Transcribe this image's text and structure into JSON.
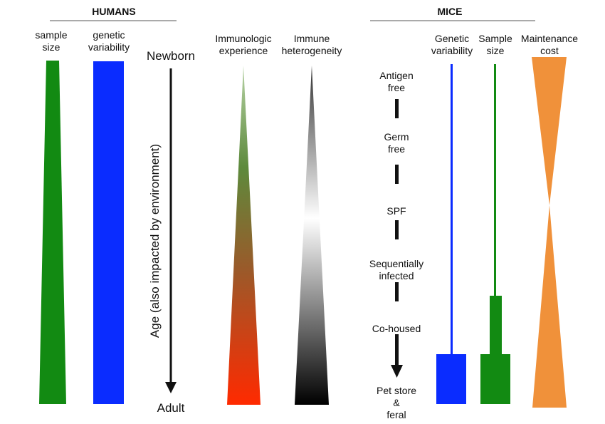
{
  "humans": {
    "title": "HUMANS",
    "sample_size": [
      "sample",
      "size"
    ],
    "genetic_variability": [
      "genetic",
      "variability"
    ],
    "age_start": "Newborn",
    "age_end": "Adult",
    "age_axis": "Age (also impacted by environment)",
    "immunologic_experience": [
      "Immunologic",
      "experience"
    ],
    "immune_heterogeneity": [
      "Immune",
      "heterogeneity"
    ]
  },
  "mice": {
    "title": "MICE",
    "genetic_variability": [
      "Genetic",
      "variability"
    ],
    "sample_size": [
      "Sample",
      "size"
    ],
    "maintenance_cost": [
      "Maintenance",
      "cost"
    ],
    "stages": [
      [
        "Antigen",
        "free"
      ],
      [
        "Germ",
        "free"
      ],
      [
        "SPF"
      ],
      [
        "Sequentially",
        "infected"
      ],
      [
        "Co-housed"
      ],
      [
        "Pet store",
        "&",
        "feral"
      ]
    ]
  },
  "colors": {
    "green": "#128a12",
    "blue": "#0a2cff",
    "orange": "#f0913a",
    "red": "#ff2a00",
    "black": "#111111"
  }
}
